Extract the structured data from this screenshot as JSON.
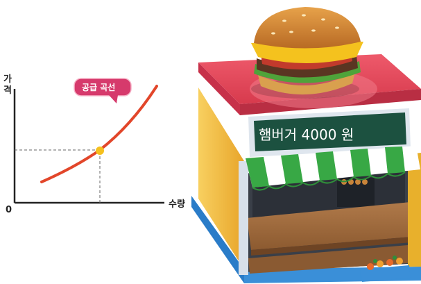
{
  "graph": {
    "y_axis_label": "가격",
    "x_axis_label": "수량",
    "origin_label": "0",
    "callout_label": "공급 곡선",
    "curve_color": "#e2462a",
    "point_color": "#f5c01e",
    "callout_color": "#d63a6c"
  },
  "store": {
    "sign_text": "햄버거   4000 원",
    "roof_color": "#e8465a",
    "wall_color": "#f2c23a",
    "awning_stripe_colors": [
      "#38a845",
      "#ffffff"
    ]
  }
}
